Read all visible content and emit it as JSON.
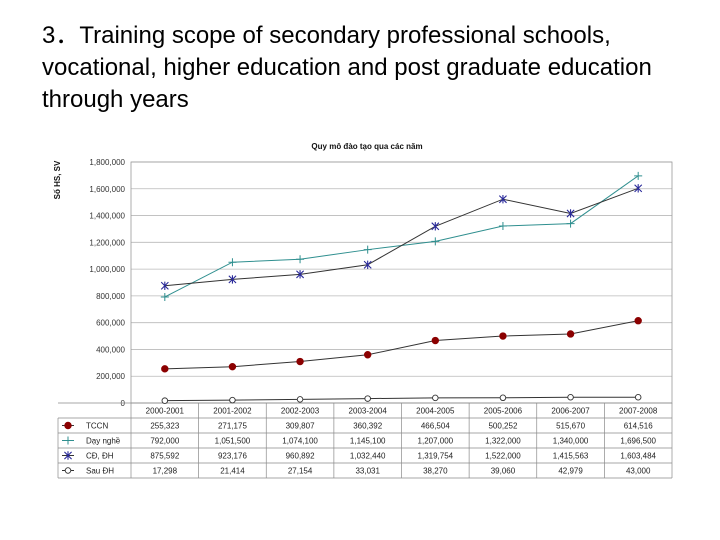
{
  "slide": {
    "title": "3．Training scope of secondary professional schools, vocational, higher education and post graduate education through years"
  },
  "chart_data": {
    "type": "line",
    "title": "Quy mô đào tạo qua các năm",
    "ylabel": "Số HS, SV",
    "xlabel": "",
    "ylim": [
      0,
      1800000
    ],
    "yticks": [
      0,
      200000,
      400000,
      600000,
      800000,
      1000000,
      1200000,
      1400000,
      1600000,
      1800000
    ],
    "ytick_labels": [
      "0",
      "200,000",
      "400,000",
      "600,000",
      "800,000",
      "1,000,000",
      "1,200,000",
      "1,400,000",
      "1,600,000",
      "1,800,000"
    ],
    "grid": true,
    "legend": "data-table",
    "categories": [
      "2000-2001",
      "2001-2002",
      "2002-2003",
      "2003-2004",
      "2004-2005",
      "2005-2006",
      "2006-2007",
      "2007-2008"
    ],
    "series": [
      {
        "name": "TCCN",
        "values": [
          255323,
          271175,
          309807,
          360392,
          466504,
          500252,
          515670,
          614516
        ],
        "labels": [
          "255,323",
          "271,175",
          "309,807",
          "360,392",
          "466,504",
          "500,252",
          "515,670",
          "614,516"
        ],
        "color": "#333333",
        "marker": "filled-circle",
        "marker_color": "#8b0000"
      },
      {
        "name": "Dạy nghề",
        "values": [
          792000,
          1051500,
          1074100,
          1145100,
          1207000,
          1322000,
          1340000,
          1696500
        ],
        "labels": [
          "792,000",
          "1,051,500",
          "1,074,100",
          "1,145,100",
          "1,207,000",
          "1,322,000",
          "1,340,000",
          "1,696,500"
        ],
        "color": "#2f8f8f",
        "marker": "plus",
        "marker_color": "#2f8f8f"
      },
      {
        "name": "CĐ, ĐH",
        "values": [
          875592,
          923176,
          960892,
          1032440,
          1319754,
          1522000,
          1415563,
          1603484
        ],
        "labels": [
          "875,592",
          "923,176",
          "960,892",
          "1,032,440",
          "1,319,754",
          "1,522,000",
          "1,415,563",
          "1,603,484"
        ],
        "color": "#333333",
        "marker": "asterisk",
        "marker_color": "#2a2a9a"
      },
      {
        "name": "Sau ĐH",
        "values": [
          17298,
          21414,
          27154,
          33031,
          38270,
          39060,
          42979,
          43000
        ],
        "labels": [
          "17,298",
          "21,414",
          "27,154",
          "33,031",
          "38,270",
          "39,060",
          "42,979",
          "43,000"
        ],
        "color": "#333333",
        "marker": "open-circle",
        "marker_color": "#333333"
      }
    ]
  }
}
